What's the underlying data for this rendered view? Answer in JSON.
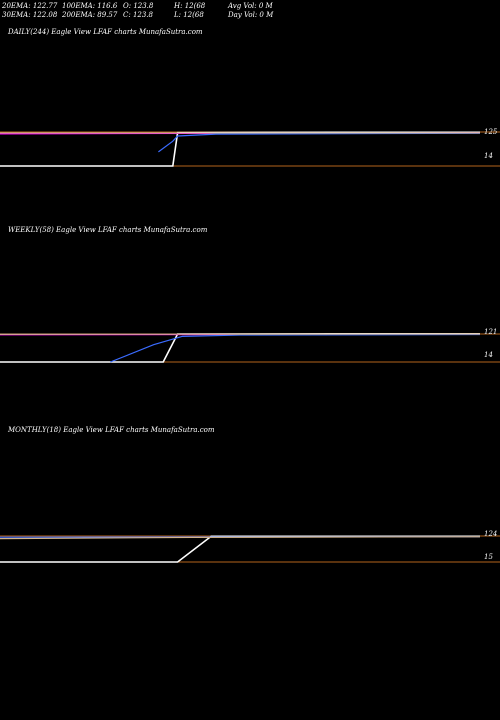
{
  "header": {
    "ema20": "20EMA: 122.77",
    "ema30": "30EMA: 122.08",
    "ema100": "100EMA: 116.6",
    "ema200": "200EMA: 89.57",
    "open": "O: 123.8",
    "close": "C: 123.8",
    "high": "H: 12(68",
    "low": "L: 12(68",
    "avgvol": "Avg Vol: 0  M",
    "dayvol": "Day Vol: 0  M"
  },
  "panels": [
    {
      "title": "DAILY(244) Eagle  View  LFAF charts MunafaSutra.com",
      "level_hi": "125",
      "level_lo": "14"
    },
    {
      "title": "WEEKLY(58) Eagle  View  LFAF charts MunafaSutra.com",
      "level_hi": "121",
      "level_lo": "14"
    },
    {
      "title": "MONTHLY(18) Eagle  View  LFAF charts MunafaSutra.com",
      "level_hi": "124",
      "level_lo": "15"
    }
  ],
  "chart_data": [
    {
      "type": "line",
      "title": "DAILY(244) Eagle  View  LFAF charts MunafaSutra.com",
      "ylim": [
        14,
        125
      ],
      "series": [
        {
          "color": "#ffffff",
          "values": [
            [
              0,
              14
            ],
            [
              0.34,
              14
            ],
            [
              0.36,
              14
            ],
            [
              0.37,
              123
            ],
            [
              0.7,
              124
            ],
            [
              1,
              124
            ]
          ]
        },
        {
          "color": "#ff00ff",
          "values": [
            [
              0,
              119
            ],
            [
              0.5,
              121
            ],
            [
              1,
              122
            ]
          ]
        },
        {
          "color": "#3a6bff",
          "values": [
            [
              0.33,
              60
            ],
            [
              0.36,
              95
            ],
            [
              0.37,
              112
            ],
            [
              0.45,
              118
            ],
            [
              1,
              121
            ]
          ]
        },
        {
          "color": "#d2b48c",
          "values": [
            [
              0,
              122
            ],
            [
              1,
              122
            ]
          ]
        }
      ],
      "horizontal_lines": [
        {
          "color": "#b5651d",
          "value": 125
        },
        {
          "color": "#b5651d",
          "value": 14
        }
      ]
    },
    {
      "type": "line",
      "title": "WEEKLY(58) Eagle  View  LFAF charts MunafaSutra.com",
      "ylim": [
        14,
        121
      ],
      "series": [
        {
          "color": "#ffffff",
          "values": [
            [
              0,
              14
            ],
            [
              0.34,
              14
            ],
            [
              0.37,
              121
            ],
            [
              0.7,
              122
            ],
            [
              1,
              122
            ]
          ]
        },
        {
          "color": "#ff00ff",
          "values": [
            [
              0,
              118
            ],
            [
              0.5,
              119
            ],
            [
              1,
              120
            ]
          ]
        },
        {
          "color": "#3a6bff",
          "values": [
            [
              0.23,
              14
            ],
            [
              0.32,
              80
            ],
            [
              0.38,
              112
            ],
            [
              0.5,
              117
            ],
            [
              1,
              119
            ]
          ]
        },
        {
          "color": "#d2b48c",
          "values": [
            [
              0,
              120
            ],
            [
              1,
              121
            ]
          ]
        }
      ],
      "horizontal_lines": [
        {
          "color": "#b5651d",
          "value": 121
        },
        {
          "color": "#b5651d",
          "value": 14
        }
      ]
    },
    {
      "type": "line",
      "title": "MONTHLY(18) Eagle  View  LFAF charts MunafaSutra.com",
      "ylim": [
        15,
        124
      ],
      "series": [
        {
          "color": "#ffffff",
          "values": [
            [
              0,
              15
            ],
            [
              0.37,
              15
            ],
            [
              0.44,
              123
            ],
            [
              0.7,
              123
            ],
            [
              1,
              123
            ]
          ]
        },
        {
          "color": "#3a6bff",
          "values": [
            [
              0,
              119
            ],
            [
              0.5,
              120
            ],
            [
              1,
              121
            ]
          ]
        },
        {
          "color": "#d2b48c",
          "values": [
            [
              0,
              113
            ],
            [
              0.4,
              118
            ],
            [
              1,
              121
            ]
          ]
        }
      ],
      "horizontal_lines": [
        {
          "color": "#b5651d",
          "value": 124
        },
        {
          "color": "#b5651d",
          "value": 15
        }
      ]
    }
  ]
}
